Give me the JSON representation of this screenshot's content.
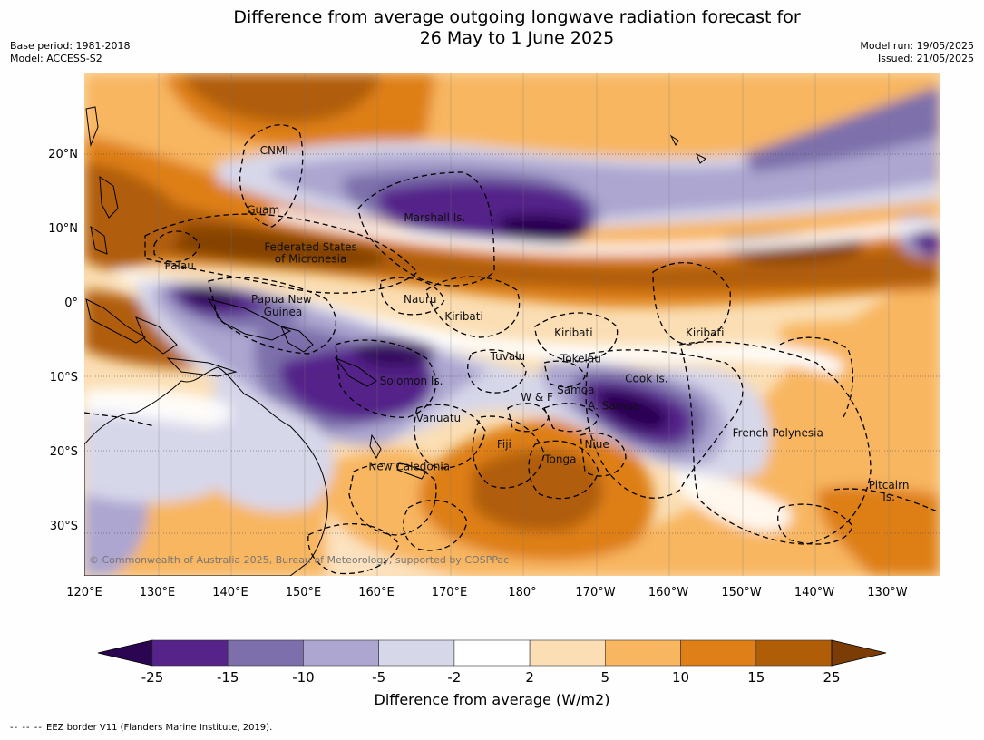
{
  "header": {
    "title_line1": "Difference from average outgoing longwave radiation forecast for",
    "title_line2": "26 May to 1 June 2025",
    "base_period": "Base period: 1981-2018",
    "model": "Model: ACCESS-S2",
    "model_run": "Model run: 19/05/2025",
    "issued": "Issued: 21/05/2025"
  },
  "map": {
    "lon_labels": [
      "120°E",
      "130°E",
      "140°E",
      "150°E",
      "160°E",
      "170°E",
      "180°",
      "170°W",
      "160°W",
      "150°W",
      "140°W",
      "130°W"
    ],
    "lat_labels": [
      "20°N",
      "10°N",
      "0°",
      "10°S",
      "20°S",
      "30°S"
    ],
    "region_labels": [
      {
        "text": "CNMI",
        "lon": 146,
        "lat": 20
      },
      {
        "text": "Guam",
        "lon": 144.5,
        "lat": 12
      },
      {
        "text": "Marshall Is.",
        "lon": 168,
        "lat": 11
      },
      {
        "text": "Federated States",
        "lon": 151,
        "lat": 7
      },
      {
        "text": "of Micronesia",
        "lon": 151,
        "lat": 5.4
      },
      {
        "text": "Palau",
        "lon": 133,
        "lat": 4.5
      },
      {
        "text": "Papua New",
        "lon": 147,
        "lat": 0
      },
      {
        "text": "Guinea",
        "lon": 147.2,
        "lat": -1.7
      },
      {
        "text": "Nauru",
        "lon": 166,
        "lat": 0
      },
      {
        "text": "Kiribati",
        "lon": 172,
        "lat": -2.3
      },
      {
        "text": "Kiribati",
        "lon": -173,
        "lat": -4.5
      },
      {
        "text": "Kiribati",
        "lon": -155,
        "lat": -4.5
      },
      {
        "text": "Tuvalu",
        "lon": 178,
        "lat": -7.7
      },
      {
        "text": "Tokelau",
        "lon": -172,
        "lat": -8
      },
      {
        "text": "Cook Is.",
        "lon": -163,
        "lat": -10.7
      },
      {
        "text": "Solomon Is.",
        "lon": 164.8,
        "lat": -11
      },
      {
        "text": "W & F",
        "lon": -178,
        "lat": -13.2
      },
      {
        "text": "Samoa",
        "lon": -172.7,
        "lat": -12.2
      },
      {
        "text": "A. Samoa",
        "lon": -167.5,
        "lat": -14.3
      },
      {
        "text": "Vanuatu",
        "lon": 168.5,
        "lat": -16
      },
      {
        "text": "French Polynesia",
        "lon": -145,
        "lat": -18
      },
      {
        "text": "Fiji",
        "lon": 177.5,
        "lat": -19.5
      },
      {
        "text": "Niue",
        "lon": -169.8,
        "lat": -19.5
      },
      {
        "text": "Tonga",
        "lon": -174.8,
        "lat": -21.5
      },
      {
        "text": "New Caledonia",
        "lon": 164.5,
        "lat": -22.5
      },
      {
        "text": "Pitcairn",
        "lon": -129.8,
        "lat": -25
      },
      {
        "text": "Is.",
        "lon": -129.8,
        "lat": -26.6
      }
    ],
    "copyright": "© Commonwealth of Australia 2025, Bureau of Meteorology, supported by COSPPac"
  },
  "colorbar": {
    "colors": [
      "#2c0552",
      "#55238a",
      "#7d6fab",
      "#aca6d0",
      "#d7d7ea",
      "#ffffff",
      "#fbdeb4",
      "#f8b660",
      "#de7f17",
      "#b05d08",
      "#7b3c06"
    ],
    "tick_labels": [
      "-25",
      "-15",
      "-10",
      "-5",
      "-2",
      "2",
      "5",
      "10",
      "15",
      "25"
    ],
    "title": "Difference from average (W/m2)"
  },
  "footer": {
    "legend_dash": "-- -- --",
    "text": "EEZ border V11 (Flanders Marine Institute, 2019)."
  }
}
